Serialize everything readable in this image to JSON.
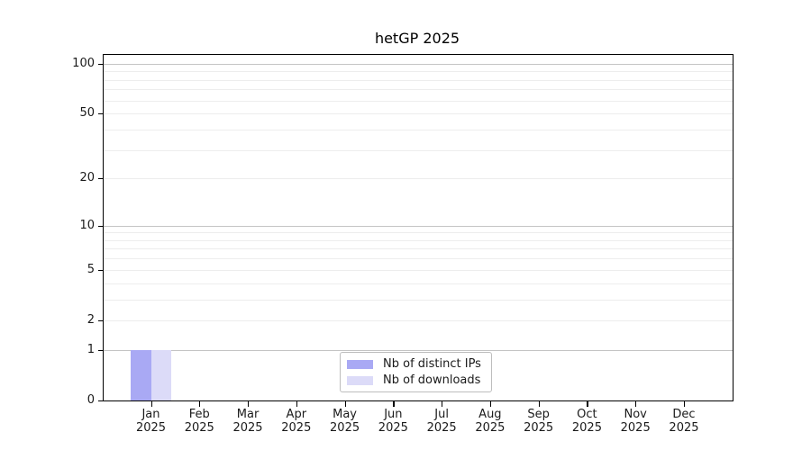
{
  "chart_data": {
    "type": "bar",
    "title": "hetGP 2025",
    "categories": [
      "Jan",
      "Feb",
      "Mar",
      "Apr",
      "May",
      "Jun",
      "Jul",
      "Aug",
      "Sep",
      "Oct",
      "Nov",
      "Dec"
    ],
    "x_tick_year": "2025",
    "series": [
      {
        "name": "Nb of distinct IPs",
        "color": "#a9a9f4",
        "values": [
          1,
          0,
          0,
          0,
          0,
          0,
          0,
          0,
          0,
          0,
          0,
          0
        ]
      },
      {
        "name": "Nb of downloads",
        "color": "#dcdbf8",
        "values": [
          1,
          0,
          0,
          0,
          0,
          0,
          0,
          0,
          0,
          0,
          0,
          0
        ]
      }
    ],
    "y_axis": {
      "scale": "log10(value+1)",
      "ticks": [
        0,
        1,
        2,
        5,
        10,
        20,
        50,
        100
      ],
      "major_gridlines": [
        1,
        10,
        100
      ],
      "minor_gridlines": [
        2,
        3,
        4,
        5,
        6,
        7,
        8,
        9,
        20,
        30,
        40,
        50,
        60,
        70,
        80,
        90
      ],
      "ylim": [
        0,
        113
      ]
    },
    "legend": {
      "position": "lower-center"
    },
    "grid": true,
    "colors": {
      "major_grid": "#c4c4c4",
      "minor_grid": "#ededed",
      "spine": "#000000",
      "tick_text": "#1a1a1a"
    }
  }
}
